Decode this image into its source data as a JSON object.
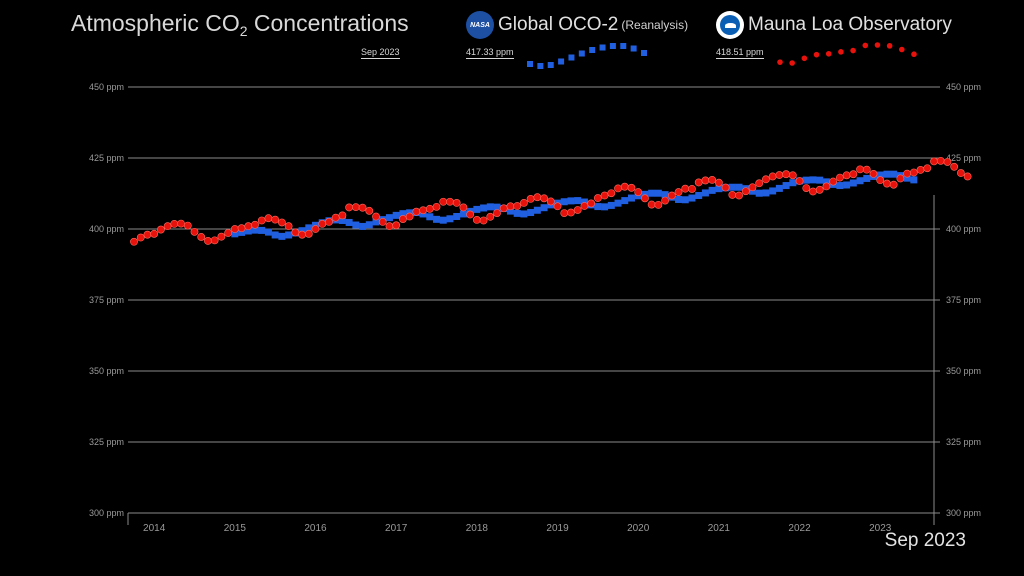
{
  "title": {
    "main": "Atmospheric CO",
    "sub": "2",
    "rest": " Concentrations"
  },
  "legend": [
    {
      "key": "oco2",
      "badge": "NASA",
      "label": "Global OCO-2",
      "note": "(Reanalysis)",
      "color": "#1f5fe0",
      "icon": "nasa-meatball-icon"
    },
    {
      "key": "mlo",
      "badge": "",
      "label": "Mauna Loa Observatory",
      "note": "",
      "color": "#e8120c",
      "icon": "noaa-logo-icon"
    }
  ],
  "readouts": {
    "date": "Sep  2023",
    "oco2_value": "417.33 ppm",
    "mlo_value": "418.51 ppm"
  },
  "current_date": "Sep 2023",
  "chart_data": {
    "type": "line",
    "title": "",
    "xlabel": "",
    "ylabel": "",
    "x_ticks": [
      "2014",
      "2015",
      "2016",
      "2017",
      "2018",
      "2019",
      "2020",
      "2021",
      "2022",
      "2023"
    ],
    "y_ticks": [
      "450 ppm",
      "425 ppm",
      "400 ppm",
      "375 ppm",
      "350 ppm",
      "325 ppm",
      "300 ppm"
    ],
    "ylim": [
      300,
      450
    ],
    "xlim": [
      "2013-10",
      "2023-09"
    ],
    "grid": true,
    "series": [
      {
        "name": "Global OCO-2 (Reanalysis)",
        "marker": "square",
        "color": "#1f5fe0",
        "start": "2015-01",
        "values": [
          398.3,
          398.8,
          399.3,
          399.6,
          399.5,
          398.9,
          397.9,
          397.4,
          397.9,
          398.6,
          399.4,
          400.4,
          401.3,
          402.2,
          402.9,
          403.2,
          403.0,
          402.3,
          401.4,
          400.9,
          401.5,
          402.5,
          403.3,
          404.0,
          404.8,
          405.4,
          405.7,
          405.8,
          405.3,
          404.3,
          403.4,
          403.1,
          403.6,
          404.4,
          405.3,
          406.2,
          406.9,
          407.4,
          407.8,
          407.7,
          407.2,
          406.3,
          405.5,
          405.3,
          405.8,
          406.6,
          407.5,
          408.5,
          409.1,
          409.6,
          409.9,
          410.0,
          409.5,
          408.5,
          407.9,
          407.8,
          408.3,
          409.1,
          410.0,
          410.9,
          411.7,
          412.2,
          412.6,
          412.6,
          412.1,
          411.2,
          410.4,
          410.3,
          410.9,
          411.8,
          412.7,
          413.6,
          414.2,
          414.5,
          414.7,
          414.7,
          414.2,
          413.3,
          412.6,
          412.7,
          413.4,
          414.3,
          415.3,
          416.3,
          416.9,
          417.2,
          417.3,
          417.2,
          416.6,
          415.7,
          415.3,
          415.5,
          416.2,
          417.0,
          417.8,
          418.5,
          419.0,
          419.3,
          419.3,
          418.8,
          417.9,
          417.3
        ]
      },
      {
        "name": "Mauna Loa Observatory",
        "marker": "circle",
        "color": "#e8120c",
        "start": "2013-10",
        "values": [
          395.5,
          397.0,
          398.0,
          398.3,
          399.8,
          401.0,
          401.8,
          401.9,
          401.2,
          399.0,
          397.2,
          395.8,
          396.0,
          397.3,
          398.6,
          400.0,
          400.3,
          401.0,
          401.5,
          403.0,
          403.8,
          403.3,
          402.3,
          401.0,
          398.8,
          398.0,
          398.3,
          400.0,
          401.8,
          402.5,
          404.0,
          404.8,
          407.6,
          407.7,
          407.5,
          406.4,
          404.4,
          402.5,
          401.0,
          401.3,
          403.5,
          404.4,
          406.1,
          406.6,
          407.1,
          407.8,
          409.6,
          409.6,
          409.2,
          407.6,
          405.1,
          403.2,
          403.0,
          404.3,
          405.6,
          407.3,
          408.0,
          408.1,
          409.2,
          410.6,
          411.2,
          410.8,
          409.7,
          408.0,
          405.6,
          405.8,
          406.7,
          408.1,
          409.0,
          410.9,
          411.8,
          412.6,
          414.3,
          414.9,
          414.5,
          413.0,
          410.8,
          408.6,
          408.5,
          410.0,
          411.8,
          413.0,
          414.2,
          414.1,
          416.4,
          417.1,
          417.3,
          416.3,
          414.6,
          412.0,
          411.8,
          413.3,
          414.7,
          416.1,
          417.5,
          418.5,
          419.0,
          419.3,
          418.9,
          416.9,
          414.4,
          413.2,
          413.8,
          415.0,
          416.7,
          418.1,
          418.9,
          419.3,
          421.0,
          420.9,
          419.4,
          417.2,
          416.0,
          415.6,
          417.8,
          419.5,
          419.9,
          420.8,
          421.4,
          423.8,
          424.0,
          423.6,
          421.9,
          419.7,
          418.5
        ]
      }
    ]
  }
}
